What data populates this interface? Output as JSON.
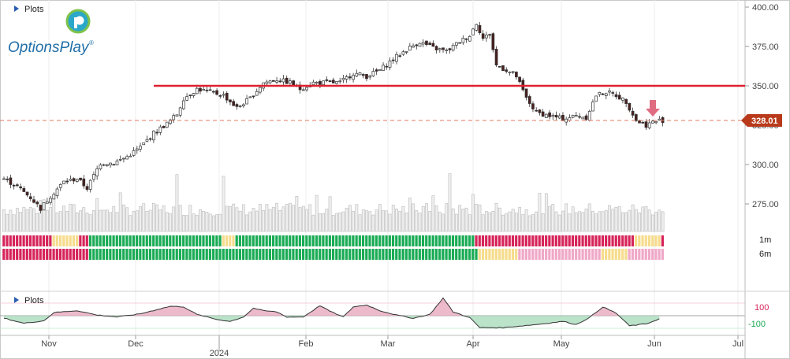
{
  "header": {
    "plots_label": "Plots",
    "brand_name": "OptionsPlay",
    "brand_mark": "®"
  },
  "oscillator": {
    "plots_label": "Plots",
    "upper_tick": "100",
    "lower_tick": "-100"
  },
  "signal_rows": [
    "1m",
    "6m"
  ],
  "last_price_label": "328.01",
  "colors": {
    "up_candle": "#ffffff",
    "down_candle": "#4a1f1f",
    "resistance": "#e0202f",
    "price_dashed": "#e07a5f",
    "price_badge": "#b83a1a",
    "green": "#1aab55",
    "red": "#d6245a",
    "yellow": "#f6dc8c",
    "pink": "#f0a8c8",
    "arrow": "#e06c82"
  },
  "chart_data": {
    "type": "candlestick",
    "y_axis": {
      "min": 250,
      "max": 400,
      "ticks": [
        "275.00",
        "300.00",
        "325.00",
        "350.00",
        "375.00",
        "400.00"
      ],
      "ticks_values": [
        275,
        300,
        325,
        350,
        375,
        400
      ]
    },
    "x_axis": {
      "month_labels": [
        "Nov",
        "Dec",
        "Feb",
        "Mar",
        "Apr",
        "May",
        "Jun",
        "Jul"
      ],
      "year_label": "2024"
    },
    "resistance_level": 350,
    "last_price": 328.01,
    "price_anchors": [
      [
        0,
        291
      ],
      [
        4,
        286
      ],
      [
        8,
        279
      ],
      [
        11,
        272
      ],
      [
        14,
        280
      ],
      [
        18,
        289
      ],
      [
        22,
        291
      ],
      [
        25,
        285
      ],
      [
        29,
        301
      ],
      [
        33,
        301
      ],
      [
        37,
        305
      ],
      [
        41,
        311
      ],
      [
        45,
        320
      ],
      [
        49,
        326
      ],
      [
        52,
        332
      ],
      [
        54,
        342
      ],
      [
        58,
        348
      ],
      [
        62,
        346
      ],
      [
        66,
        344
      ],
      [
        70,
        336
      ],
      [
        74,
        342
      ],
      [
        78,
        352
      ],
      [
        82,
        354
      ],
      [
        86,
        352
      ],
      [
        89,
        348
      ],
      [
        93,
        352
      ],
      [
        97,
        352
      ],
      [
        101,
        352
      ],
      [
        105,
        358
      ],
      [
        109,
        356
      ],
      [
        113,
        360
      ],
      [
        117,
        367
      ],
      [
        121,
        373
      ],
      [
        125,
        378
      ],
      [
        129,
        374
      ],
      [
        133,
        372
      ],
      [
        137,
        378
      ],
      [
        140,
        382
      ],
      [
        142,
        390
      ],
      [
        144,
        380
      ],
      [
        146,
        383
      ],
      [
        148,
        363
      ],
      [
        151,
        360
      ],
      [
        154,
        356
      ],
      [
        157,
        342
      ],
      [
        160,
        333
      ],
      [
        164,
        331
      ],
      [
        168,
        329
      ],
      [
        172,
        331
      ],
      [
        175,
        330
      ],
      [
        178,
        344
      ],
      [
        181,
        346
      ],
      [
        184,
        344
      ],
      [
        187,
        340
      ],
      [
        190,
        328
      ],
      [
        193,
        325
      ],
      [
        195,
        327
      ],
      [
        197,
        328.01
      ]
    ],
    "volume_spike_index": [
      52,
      66,
      134
    ],
    "oscillator_range": [
      -150,
      150
    ],
    "oscillator_anchors": [
      [
        0,
        -20
      ],
      [
        6,
        -60
      ],
      [
        12,
        -40
      ],
      [
        15,
        25
      ],
      [
        22,
        40
      ],
      [
        28,
        5
      ],
      [
        34,
        -10
      ],
      [
        41,
        15
      ],
      [
        50,
        75
      ],
      [
        54,
        70
      ],
      [
        58,
        10
      ],
      [
        64,
        -30
      ],
      [
        68,
        -45
      ],
      [
        72,
        -10
      ],
      [
        75,
        60
      ],
      [
        78,
        40
      ],
      [
        82,
        30
      ],
      [
        85,
        -10
      ],
      [
        90,
        -10
      ],
      [
        95,
        80
      ],
      [
        98,
        35
      ],
      [
        102,
        -10
      ],
      [
        105,
        70
      ],
      [
        109,
        85
      ],
      [
        113,
        40
      ],
      [
        118,
        5
      ],
      [
        123,
        -20
      ],
      [
        128,
        10
      ],
      [
        132,
        140
      ],
      [
        135,
        30
      ],
      [
        140,
        -15
      ],
      [
        143,
        -95
      ],
      [
        150,
        -95
      ],
      [
        160,
        -70
      ],
      [
        168,
        -45
      ],
      [
        172,
        -70
      ],
      [
        176,
        -15
      ],
      [
        180,
        70
      ],
      [
        184,
        20
      ],
      [
        188,
        -80
      ],
      [
        193,
        -65
      ],
      [
        197,
        -25
      ]
    ],
    "signals": {
      "1m_segments": [
        [
          0,
          15,
          "red"
        ],
        [
          15,
          23,
          "yellow"
        ],
        [
          23,
          26,
          "red"
        ],
        [
          26,
          66,
          "green"
        ],
        [
          66,
          70,
          "yellow"
        ],
        [
          70,
          142,
          "green"
        ],
        [
          142,
          190,
          "red"
        ],
        [
          190,
          198,
          "yellow"
        ],
        [
          198,
          199,
          "red"
        ]
      ],
      "6m_segments": [
        [
          0,
          26,
          "red"
        ],
        [
          26,
          143,
          "green"
        ],
        [
          143,
          155,
          "yellow"
        ],
        [
          155,
          180,
          "pink"
        ],
        [
          180,
          188,
          "yellow"
        ],
        [
          188,
          199,
          "pink"
        ]
      ]
    }
  }
}
